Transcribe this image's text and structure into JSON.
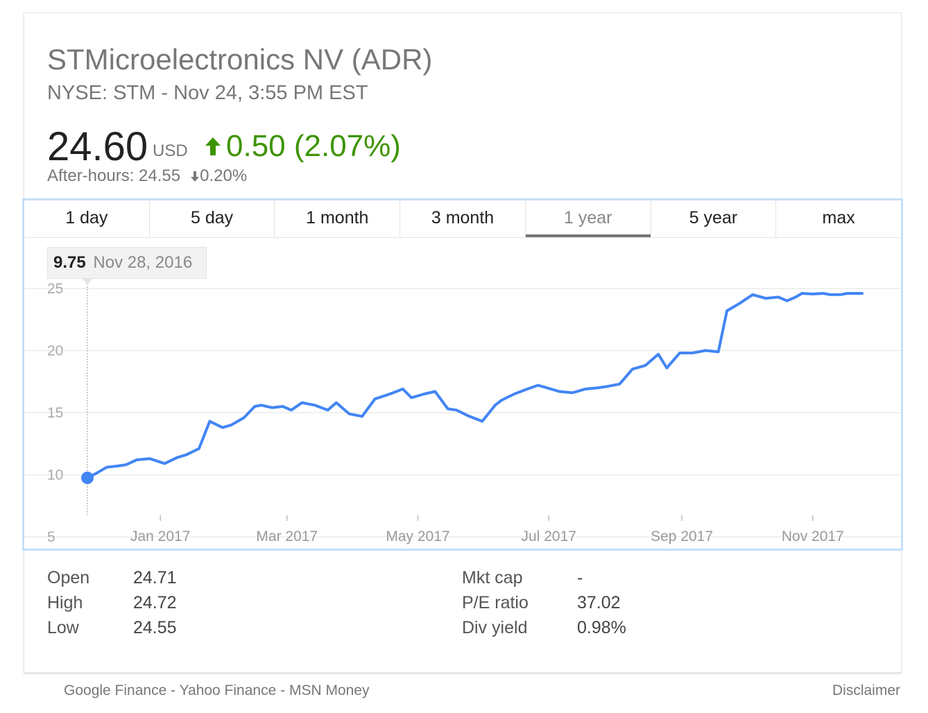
{
  "stock": {
    "title": "STMicroelectronics NV (ADR)",
    "subtitle": "NYSE: STM - Nov 24, 3:55 PM EST",
    "price": "24.60",
    "currency": "USD",
    "change": "0.50 (2.07%)",
    "after_hours": "After-hours: 24.55",
    "after_hours_change": "0.20%",
    "up_color": "#3d9400",
    "line_color": "#4285f4"
  },
  "tabs": [
    "1 day",
    "5 day",
    "1 month",
    "3 month",
    "1 year",
    "5 year",
    "max"
  ],
  "active_tab": "1 year",
  "tooltip": {
    "value": "9.75",
    "date": "Nov 28, 2016"
  },
  "chart_data": {
    "type": "line",
    "ylim": [
      5,
      27
    ],
    "yticks": [
      "5",
      "10",
      "15",
      "20",
      "25"
    ],
    "x_range": [
      "2016-11-28",
      "2017-11-24"
    ],
    "xticks": [
      {
        "label": "Jan 2017",
        "date": "2017-01-01"
      },
      {
        "label": "Mar 2017",
        "date": "2017-03-01"
      },
      {
        "label": "May 2017",
        "date": "2017-05-01"
      },
      {
        "label": "Jul 2017",
        "date": "2017-07-01"
      },
      {
        "label": "Sep 2017",
        "date": "2017-09-01"
      },
      {
        "label": "Nov 2017",
        "date": "2017-11-01"
      }
    ],
    "series": [
      {
        "x": [
          "2016-11-28",
          "2016-12-02",
          "2016-12-07",
          "2016-12-12",
          "2016-12-16",
          "2016-12-21",
          "2016-12-27",
          "2017-01-03",
          "2017-01-09",
          "2017-01-13",
          "2017-01-19",
          "2017-01-24",
          "2017-01-30",
          "2017-02-03",
          "2017-02-09",
          "2017-02-14",
          "2017-02-17",
          "2017-02-22",
          "2017-02-27",
          "2017-03-03",
          "2017-03-08",
          "2017-03-14",
          "2017-03-20",
          "2017-03-24",
          "2017-03-30",
          "2017-04-05",
          "2017-04-11",
          "2017-04-18",
          "2017-04-24",
          "2017-04-28",
          "2017-05-04",
          "2017-05-09",
          "2017-05-15",
          "2017-05-19",
          "2017-05-25",
          "2017-05-31",
          "2017-06-06",
          "2017-06-09",
          "2017-06-15",
          "2017-06-21",
          "2017-06-26",
          "2017-06-30",
          "2017-07-06",
          "2017-07-12",
          "2017-07-18",
          "2017-07-24",
          "2017-07-28",
          "2017-08-03",
          "2017-08-09",
          "2017-08-15",
          "2017-08-21",
          "2017-08-25",
          "2017-08-31",
          "2017-09-06",
          "2017-09-12",
          "2017-09-18",
          "2017-09-22",
          "2017-09-28",
          "2017-10-04",
          "2017-10-10",
          "2017-10-16",
          "2017-10-20",
          "2017-10-24",
          "2017-10-27",
          "2017-11-01",
          "2017-11-06",
          "2017-11-09",
          "2017-11-14",
          "2017-11-17",
          "2017-11-21",
          "2017-11-24"
        ],
        "y": [
          9.75,
          10.1,
          10.6,
          10.7,
          10.8,
          11.2,
          11.3,
          10.9,
          11.4,
          11.6,
          12.1,
          14.3,
          13.8,
          14.0,
          14.6,
          15.5,
          15.6,
          15.4,
          15.5,
          15.2,
          15.8,
          15.6,
          15.2,
          15.8,
          14.9,
          14.7,
          16.1,
          16.5,
          16.9,
          16.2,
          16.5,
          16.7,
          15.3,
          15.2,
          14.7,
          14.3,
          15.6,
          16.0,
          16.5,
          16.9,
          17.2,
          17.0,
          16.7,
          16.6,
          16.9,
          17.0,
          17.1,
          17.3,
          18.5,
          18.8,
          19.7,
          18.6,
          19.8,
          19.8,
          20.0,
          19.9,
          23.2,
          23.8,
          24.5,
          24.2,
          24.3,
          24.0,
          24.3,
          24.6,
          24.55,
          24.6,
          24.5,
          24.5,
          24.6,
          24.6,
          24.6
        ],
        "marker_index": 0
      }
    ]
  },
  "stats_left": [
    {
      "label": "Open",
      "value": "24.71"
    },
    {
      "label": "High",
      "value": "24.72"
    },
    {
      "label": "Low",
      "value": "24.55"
    }
  ],
  "stats_right": [
    {
      "label": "Mkt cap",
      "value": "-"
    },
    {
      "label": "P/E ratio",
      "value": "37.02"
    },
    {
      "label": "Div yield",
      "value": "0.98%"
    }
  ],
  "footer": {
    "links": [
      "Google Finance",
      "Yahoo Finance",
      "MSN Money"
    ],
    "separator": " - ",
    "disclaimer": "Disclaimer"
  }
}
